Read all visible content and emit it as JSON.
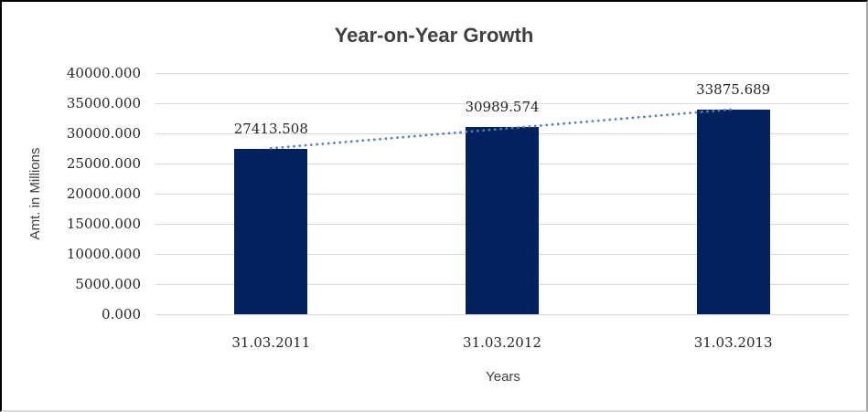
{
  "chart_data": {
    "type": "bar",
    "title": "Year-on-Year Growth",
    "xlabel": "Years",
    "ylabel": "Amt. in Millions",
    "categories": [
      "31.03.2011",
      "31.03.2012",
      "31.03.2013"
    ],
    "values": [
      27413.508,
      30989.574,
      33875.689
    ],
    "data_labels": [
      "27413.508",
      "30989.574",
      "33875.689"
    ],
    "ylim": [
      0,
      40000
    ],
    "ytick_step": 5000,
    "ytick_labels": [
      "0.000",
      "5000.000",
      "10000.000",
      "15000.000",
      "20000.000",
      "25000.000",
      "30000.000",
      "35000.000",
      "40000.000"
    ],
    "grid": true,
    "legend": "none",
    "trendline": "linear-dotted",
    "colors": {
      "bar": "#02215e",
      "trendline": "#4f81bd",
      "gridline": "#d9d9d9",
      "title_text": "#404040",
      "axis_text": "#262626",
      "background": "#ffffff"
    }
  }
}
